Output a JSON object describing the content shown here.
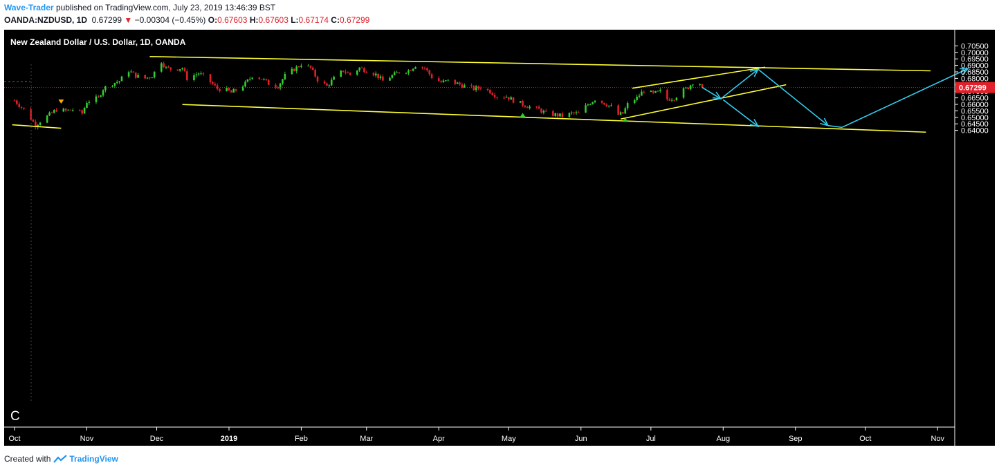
{
  "header": {
    "author": "Wave-Trader",
    "published": "published on TradingView.com, July 23, 2019 13:46:39 BST",
    "symbol": "OANDA:NZDUSD, 1D",
    "last": "0.67299",
    "change": "−0.00304 (−0.45%)",
    "o_label": "O:",
    "o_value": "0.67603",
    "h_label": "H:",
    "h_value": "0.67603",
    "l_label": "L:",
    "l_value": "0.67174",
    "c_label": "C:",
    "c_value": "0.67299"
  },
  "chart_title": "New Zealand Dollar / U.S. Dollar, 1D, OANDA",
  "wave_label": "C",
  "footer": {
    "created_with": "Created with",
    "brand": "TradingView"
  },
  "colors": {
    "background": "#000000",
    "up": "#33cc33",
    "down": "#e0202a",
    "trendline": "#ffff33",
    "projection": "#33ccee",
    "last_price_badge": "#e0202a"
  },
  "chart_data": {
    "type": "candlestick",
    "title": "New Zealand Dollar / U.S. Dollar, 1D, OANDA",
    "ylim": [
      0.6382,
      0.7079
    ],
    "y_ticks": [
      "0.64000",
      "0.64500",
      "0.65000",
      "0.65500",
      "0.66000",
      "0.66500",
      "0.67000",
      "0.67500",
      "0.68000",
      "0.68500",
      "0.69000",
      "0.69500",
      "0.70000",
      "0.70500"
    ],
    "x_ticks": [
      "Oct",
      "Nov",
      "Dec",
      "2019",
      "Feb",
      "Mar",
      "Apr",
      "May",
      "Jun",
      "Jul",
      "Aug",
      "Sep",
      "Oct",
      "Nov"
    ],
    "x_tick_dates": [
      "2018-10-01",
      "2018-11-01",
      "2018-12-01",
      "2019-01-01",
      "2019-02-01",
      "2019-03-01",
      "2019-04-01",
      "2019-05-01",
      "2019-06-01",
      "2019-07-01",
      "2019-08-01",
      "2019-09-01",
      "2019-10-01",
      "2019-11-01"
    ],
    "last_price": "0.67299",
    "close_path": [
      [
        "2018-10-01",
        0.663
      ],
      [
        "2018-10-05",
        0.656
      ],
      [
        "2018-10-08",
        0.649
      ],
      [
        "2018-10-10",
        0.644
      ],
      [
        "2018-10-12",
        0.647
      ],
      [
        "2018-10-16",
        0.652
      ],
      [
        "2018-10-19",
        0.656
      ],
      [
        "2018-10-23",
        0.655
      ],
      [
        "2018-10-26",
        0.656
      ],
      [
        "2018-10-30",
        0.653
      ],
      [
        "2018-11-01",
        0.662
      ],
      [
        "2018-11-06",
        0.665
      ],
      [
        "2018-11-08",
        0.672
      ],
      [
        "2018-11-12",
        0.676
      ],
      [
        "2018-11-15",
        0.678
      ],
      [
        "2018-11-19",
        0.686
      ],
      [
        "2018-11-22",
        0.682
      ],
      [
        "2018-11-26",
        0.68
      ],
      [
        "2018-11-29",
        0.682
      ],
      [
        "2018-12-03",
        0.693
      ],
      [
        "2018-12-05",
        0.688
      ],
      [
        "2018-12-08",
        0.687
      ],
      [
        "2018-12-12",
        0.688
      ],
      [
        "2018-12-14",
        0.68
      ],
      [
        "2018-12-19",
        0.684
      ],
      [
        "2018-12-23",
        0.679
      ],
      [
        "2018-12-27",
        0.672
      ],
      [
        "2018-12-31",
        0.671
      ],
      [
        "2019-01-02",
        0.669
      ],
      [
        "2019-01-05",
        0.672
      ],
      [
        "2019-01-08",
        0.676
      ],
      [
        "2019-01-11",
        0.682
      ],
      [
        "2019-01-15",
        0.68
      ],
      [
        "2019-01-18",
        0.676
      ],
      [
        "2019-01-22",
        0.674
      ],
      [
        "2019-01-25",
        0.682
      ],
      [
        "2019-01-29",
        0.687
      ],
      [
        "2019-02-01",
        0.691
      ],
      [
        "2019-02-05",
        0.688
      ],
      [
        "2019-02-08",
        0.679
      ],
      [
        "2019-02-12",
        0.674
      ],
      [
        "2019-02-15",
        0.68
      ],
      [
        "2019-02-19",
        0.686
      ],
      [
        "2019-02-22",
        0.683
      ],
      [
        "2019-02-26",
        0.688
      ],
      [
        "2019-03-01",
        0.686
      ],
      [
        "2019-03-05",
        0.683
      ],
      [
        "2019-03-08",
        0.678
      ],
      [
        "2019-03-12",
        0.682
      ],
      [
        "2019-03-15",
        0.685
      ],
      [
        "2019-03-19",
        0.686
      ],
      [
        "2019-03-22",
        0.69
      ],
      [
        "2019-03-26",
        0.688
      ],
      [
        "2019-03-29",
        0.681
      ],
      [
        "2019-04-02",
        0.677
      ],
      [
        "2019-04-05",
        0.678
      ],
      [
        "2019-04-09",
        0.676
      ],
      [
        "2019-04-12",
        0.674
      ],
      [
        "2019-04-16",
        0.672
      ],
      [
        "2019-04-19",
        0.673
      ],
      [
        "2019-04-23",
        0.67
      ],
      [
        "2019-04-26",
        0.666
      ],
      [
        "2019-04-30",
        0.666
      ],
      [
        "2019-05-03",
        0.663
      ],
      [
        "2019-05-07",
        0.66
      ],
      [
        "2019-05-10",
        0.658
      ],
      [
        "2019-05-14",
        0.656
      ],
      [
        "2019-05-17",
        0.653
      ],
      [
        "2019-05-21",
        0.652
      ],
      [
        "2019-05-24",
        0.651
      ],
      [
        "2019-05-28",
        0.653
      ],
      [
        "2019-05-31",
        0.653
      ],
      [
        "2019-06-04",
        0.66
      ],
      [
        "2019-06-07",
        0.664
      ],
      [
        "2019-06-11",
        0.661
      ],
      [
        "2019-06-14",
        0.658
      ],
      [
        "2019-06-17",
        0.652
      ],
      [
        "2019-06-19",
        0.653
      ],
      [
        "2019-06-21",
        0.66
      ],
      [
        "2019-06-25",
        0.665
      ],
      [
        "2019-06-28",
        0.671
      ],
      [
        "2019-07-02",
        0.668
      ],
      [
        "2019-07-05",
        0.67
      ],
      [
        "2019-07-08",
        0.664
      ],
      [
        "2019-07-11",
        0.665
      ],
      [
        "2019-07-15",
        0.671
      ],
      [
        "2019-07-17",
        0.673
      ],
      [
        "2019-07-19",
        0.677
      ],
      [
        "2019-07-22",
        0.676
      ],
      [
        "2019-07-23",
        0.673
      ]
    ],
    "trendlines": [
      {
        "name": "upper channel line",
        "from": [
          "2018-11-28",
          0.6968
        ],
        "to": [
          "2019-10-29",
          0.6858
        ]
      },
      {
        "name": "lower channel line",
        "from": [
          "2018-12-12",
          0.6599
        ],
        "to": [
          "2019-10-27",
          0.6386
        ]
      },
      {
        "name": "short support line",
        "from": [
          "2018-09-30",
          0.6443
        ],
        "to": [
          "2018-10-21",
          0.6416
        ]
      },
      {
        "name": "rising channel upper",
        "from": [
          "2019-06-23",
          0.6724
        ],
        "to": [
          "2019-08-19",
          0.6886
        ]
      },
      {
        "name": "rising channel lower",
        "from": [
          "2019-06-18",
          0.6487
        ],
        "to": [
          "2019-08-28",
          0.6751
        ]
      }
    ],
    "projection_path": [
      [
        "2019-07-23",
        0.673
      ],
      [
        "2019-07-31",
        0.6643
      ],
      [
        "2019-08-16",
        0.687
      ],
      [
        "2019-09-15",
        0.6437
      ],
      [
        "2019-09-21",
        0.6423
      ],
      [
        "2019-11-14",
        0.6875
      ]
    ],
    "projection_branch": [
      [
        "2019-08-01",
        0.6635
      ],
      [
        "2019-08-16",
        0.643
      ]
    ],
    "markers": [
      {
        "date": "2018-10-21",
        "price": 0.6621,
        "shape": "triangle-down",
        "color": "#ffaa00"
      },
      {
        "date": "2019-05-07",
        "price": 0.6518,
        "shape": "triangle-up",
        "color": "#33cc33"
      },
      {
        "date": "2019-06-20",
        "price": 0.6482,
        "shape": "triangle-up",
        "color": "#33cc33"
      }
    ]
  }
}
